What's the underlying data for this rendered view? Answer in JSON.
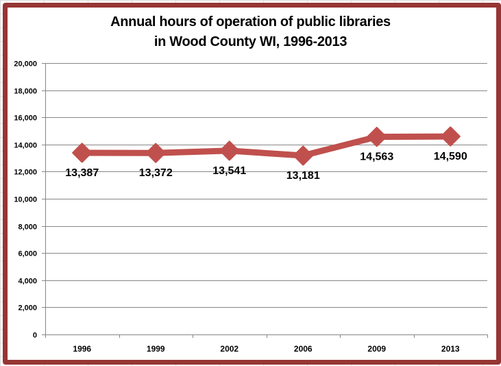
{
  "chart_data": {
    "type": "line",
    "title": "Annual hours of operation of public libraries in Wood County WI, 1996-2013",
    "title_lines": [
      "Annual hours of operation of public libraries",
      "in Wood County WI, 1996-2013"
    ],
    "xlabel": "",
    "ylabel": "",
    "categories": [
      "1996",
      "1999",
      "2002",
      "2006",
      "2009",
      "2013"
    ],
    "series": [
      {
        "name": "Annual hours of operation",
        "values": [
          13387,
          13372,
          13541,
          13181,
          14563,
          14590
        ],
        "data_labels": [
          "13,387",
          "13,372",
          "13,541",
          "13,181",
          "14,563",
          "14,590"
        ],
        "color": "#c0504d",
        "marker": "diamond"
      }
    ],
    "ylim": [
      0,
      20000
    ],
    "y_ticks": [
      0,
      2000,
      4000,
      6000,
      8000,
      10000,
      12000,
      14000,
      16000,
      18000,
      20000
    ],
    "y_tick_labels": [
      "0",
      "2,000",
      "4,000",
      "6,000",
      "8,000",
      "10,000",
      "12,000",
      "14,000",
      "16,000",
      "18,000",
      "20,000"
    ],
    "grid": true,
    "legend": "none"
  },
  "colors": {
    "frame": "#963634",
    "line": "#c0504d",
    "gridline": "#868686"
  }
}
